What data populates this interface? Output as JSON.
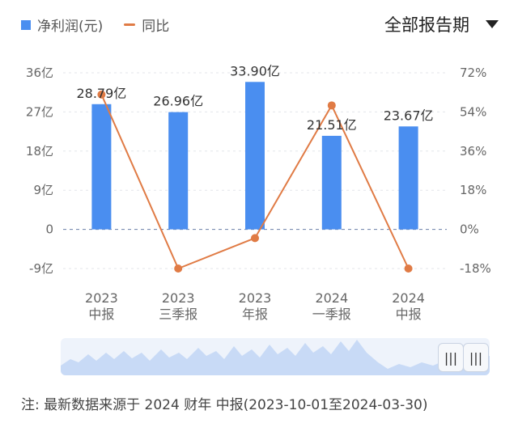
{
  "legend": {
    "bar_label": "净利润(元)",
    "line_label": "同比"
  },
  "period_selector": {
    "label": "全部报告期",
    "icon": "caret-down-icon"
  },
  "colors": {
    "bar": "#4a8ef0",
    "line": "#e07b45",
    "grid": "#e3e6ea",
    "zero_line": "#6b7fa8"
  },
  "chart_data": {
    "type": "bar",
    "categories": [
      [
        "2023",
        "中报"
      ],
      [
        "2023",
        "三季报"
      ],
      [
        "2023",
        "年报"
      ],
      [
        "2024",
        "一季报"
      ],
      [
        "2024",
        "中报"
      ]
    ],
    "series": [
      {
        "name": "净利润(元)",
        "type": "bar",
        "axis": "left",
        "values": [
          28.79,
          26.96,
          33.9,
          21.51,
          23.67
        ],
        "labels": [
          "28.79亿",
          "26.96亿",
          "33.90亿",
          "21.51亿",
          "23.67亿"
        ]
      },
      {
        "name": "同比",
        "type": "line",
        "axis": "right",
        "values": [
          62,
          -18,
          -4,
          57,
          -18
        ]
      }
    ],
    "y_left": {
      "ylim": [
        -9,
        36
      ],
      "ticks": [
        36,
        27,
        18,
        9,
        0,
        -9
      ],
      "tick_labels": [
        "36亿",
        "27亿",
        "18亿",
        "9亿",
        "0",
        "-9亿"
      ]
    },
    "y_right": {
      "ylim": [
        -18,
        72
      ],
      "ticks": [
        72,
        54,
        36,
        18,
        0,
        -18
      ],
      "tick_labels": [
        "72%",
        "54%",
        "36%",
        "18%",
        "0%",
        "-18%"
      ]
    },
    "grid": true,
    "legend_position": "top-left"
  },
  "scroller": {
    "left_handle": "|||",
    "right_handle": "|||"
  },
  "footnote": "注: 最新数据来源于 2024 财年 中报(2023-10-01至2024-03-30)"
}
